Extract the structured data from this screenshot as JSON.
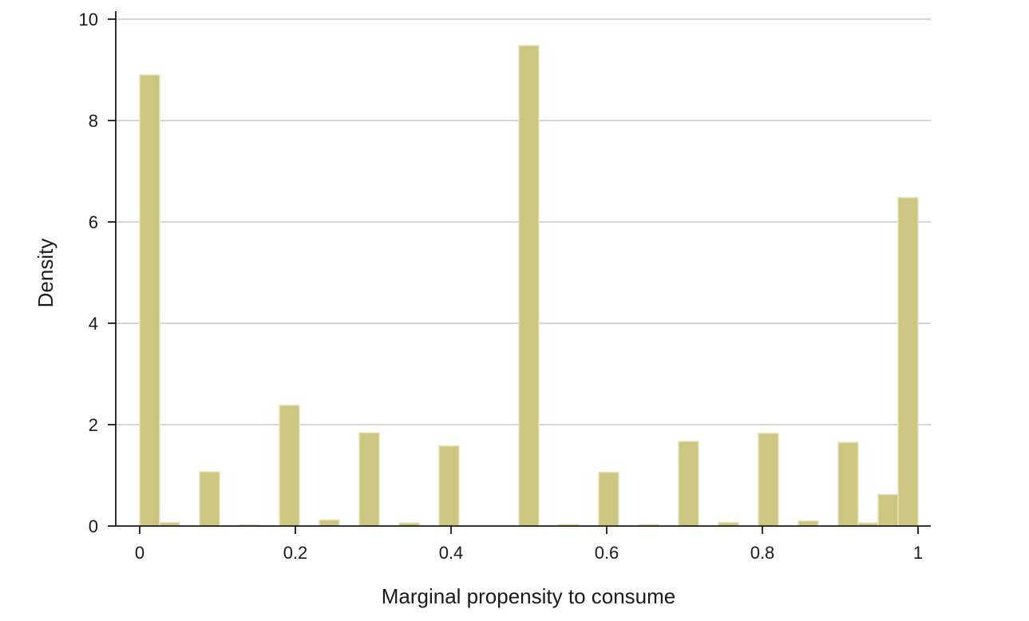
{
  "chart_data": {
    "type": "bar",
    "title": "",
    "xlabel": "Marginal propensity to consume",
    "ylabel": "Density",
    "xlim": [
      -0.03,
      1.02
    ],
    "ylim": [
      0,
      10
    ],
    "x_ticks": [
      0,
      0.2,
      0.4,
      0.6,
      0.8,
      1
    ],
    "x_tick_labels": [
      "0",
      "0.2",
      "0.4",
      "0.6",
      "0.8",
      "1"
    ],
    "y_ticks": [
      0,
      2,
      4,
      6,
      8,
      10
    ],
    "y_tick_labels": [
      "0",
      "2",
      "4",
      "6",
      "8",
      "10"
    ],
    "grid": "horizontal",
    "bar_color": "#cdc582",
    "bin_width": 0.0256,
    "bins": [
      {
        "x": 0.0,
        "value": 8.9
      },
      {
        "x": 0.0256,
        "value": 0.07
      },
      {
        "x": 0.0769,
        "value": 1.07
      },
      {
        "x": 0.1282,
        "value": 0.02
      },
      {
        "x": 0.1795,
        "value": 2.38
      },
      {
        "x": 0.2308,
        "value": 0.12
      },
      {
        "x": 0.2821,
        "value": 1.84
      },
      {
        "x": 0.3333,
        "value": 0.06
      },
      {
        "x": 0.3846,
        "value": 1.58
      },
      {
        "x": 0.4872,
        "value": 9.48
      },
      {
        "x": 0.5385,
        "value": 0.03
      },
      {
        "x": 0.5897,
        "value": 1.06
      },
      {
        "x": 0.641,
        "value": 0.03
      },
      {
        "x": 0.6923,
        "value": 1.67
      },
      {
        "x": 0.7436,
        "value": 0.07
      },
      {
        "x": 0.7949,
        "value": 1.83
      },
      {
        "x": 0.8462,
        "value": 0.1
      },
      {
        "x": 0.8974,
        "value": 1.65
      },
      {
        "x": 0.9231,
        "value": 0.06
      },
      {
        "x": 0.9487,
        "value": 0.62
      },
      {
        "x": 0.9744,
        "value": 6.48
      }
    ]
  }
}
